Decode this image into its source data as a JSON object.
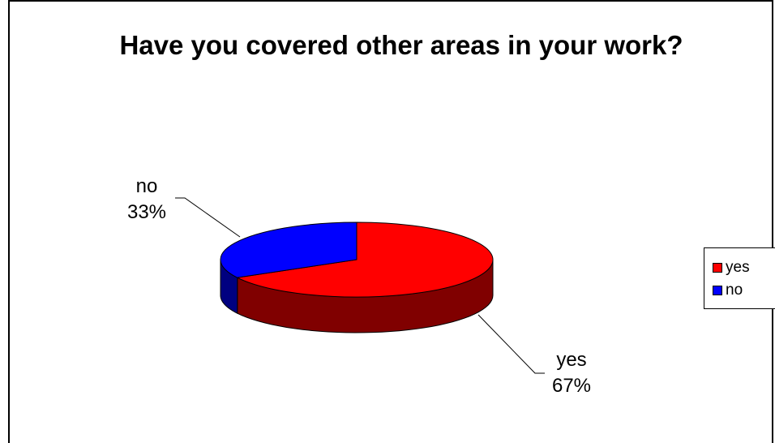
{
  "chart_data": {
    "type": "pie",
    "title": "Have you covered other areas in your work?",
    "categories": [
      "yes",
      "no"
    ],
    "values": [
      67,
      33
    ],
    "percent_labels": [
      "67%",
      "33%"
    ],
    "colors": {
      "yes": {
        "top": "#FF0000",
        "side": "#800000"
      },
      "no": {
        "top": "#0000FF",
        "side": "#000080"
      }
    },
    "legend": {
      "placement": "right",
      "entries": [
        "yes",
        "no"
      ]
    },
    "style": "3d"
  }
}
